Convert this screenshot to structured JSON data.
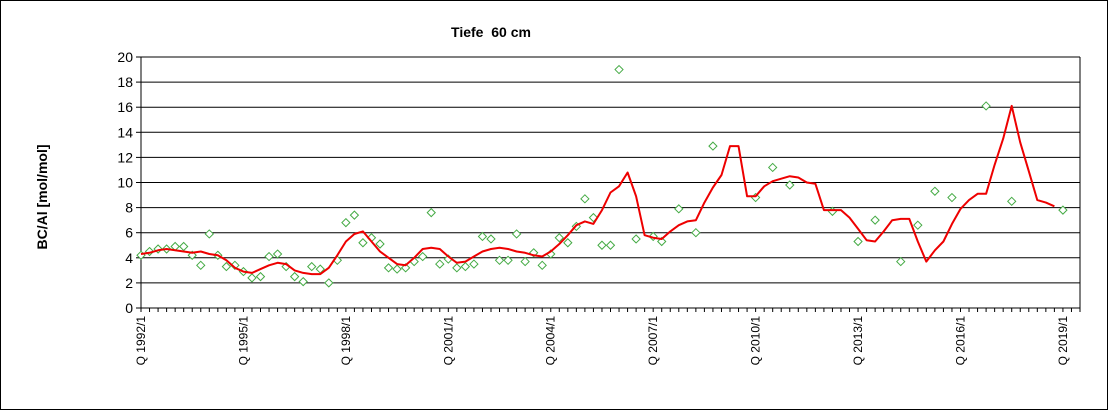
{
  "chart_data": {
    "type": "line",
    "title": "Tiefe  60 cm",
    "xlabel": "",
    "ylabel": "BC/Al [mol/mol]",
    "ylim": [
      0,
      20
    ],
    "yticks": [
      0,
      2,
      4,
      6,
      8,
      10,
      12,
      14,
      16,
      18,
      20
    ],
    "x_range": [
      1992.0,
      2019.5
    ],
    "xtick_labels": [
      {
        "label": "Q 1992/1",
        "x": 1992.0
      },
      {
        "label": "Q 1995/1",
        "x": 1995.0
      },
      {
        "label": "Q 1998/1",
        "x": 1998.0
      },
      {
        "label": "Q 2001/1",
        "x": 2001.0
      },
      {
        "label": "Q 2004/1",
        "x": 2004.0
      },
      {
        "label": "Q 2007/1",
        "x": 2007.0
      },
      {
        "label": "Q 2010/1",
        "x": 2010.0
      },
      {
        "label": "Q 2013/1",
        "x": 2013.0
      },
      {
        "label": "Q 2016/1",
        "x": 2016.0
      },
      {
        "label": "Q 2019/1",
        "x": 2019.0
      }
    ],
    "grid": "horizontal",
    "legend": "none",
    "series": [
      {
        "kind": "scatter",
        "marker": "diamond",
        "color": "#44aa44",
        "points": [
          [
            1992.0,
            4.2
          ],
          [
            1992.25,
            4.5
          ],
          [
            1992.5,
            4.7
          ],
          [
            1992.75,
            4.7
          ],
          [
            1993.0,
            4.9
          ],
          [
            1993.25,
            4.9
          ],
          [
            1993.5,
            4.2
          ],
          [
            1993.75,
            3.4
          ],
          [
            1994.0,
            5.9
          ],
          [
            1994.25,
            4.2
          ],
          [
            1994.5,
            3.3
          ],
          [
            1994.75,
            3.4
          ],
          [
            1995.0,
            2.9
          ],
          [
            1995.25,
            2.4
          ],
          [
            1995.5,
            2.5
          ],
          [
            1995.75,
            4.1
          ],
          [
            1996.0,
            4.3
          ],
          [
            1996.25,
            3.3
          ],
          [
            1996.5,
            2.5
          ],
          [
            1996.75,
            2.1
          ],
          [
            1997.0,
            3.3
          ],
          [
            1997.25,
            3.1
          ],
          [
            1997.5,
            2.0
          ],
          [
            1997.75,
            3.8
          ],
          [
            1998.0,
            6.8
          ],
          [
            1998.25,
            7.4
          ],
          [
            1998.5,
            5.2
          ],
          [
            1998.75,
            5.6
          ],
          [
            1999.0,
            5.1
          ],
          [
            1999.25,
            3.2
          ],
          [
            1999.5,
            3.1
          ],
          [
            1999.75,
            3.2
          ],
          [
            2000.0,
            3.7
          ],
          [
            2000.25,
            4.1
          ],
          [
            2000.5,
            7.6
          ],
          [
            2000.75,
            3.5
          ],
          [
            2001.0,
            3.9
          ],
          [
            2001.25,
            3.2
          ],
          [
            2001.5,
            3.3
          ],
          [
            2001.75,
            3.5
          ],
          [
            2002.0,
            5.7
          ],
          [
            2002.25,
            5.5
          ],
          [
            2002.5,
            3.8
          ],
          [
            2002.75,
            3.8
          ],
          [
            2003.0,
            5.9
          ],
          [
            2003.25,
            3.7
          ],
          [
            2003.5,
            4.4
          ],
          [
            2003.75,
            3.4
          ],
          [
            2004.0,
            4.3
          ],
          [
            2004.25,
            5.6
          ],
          [
            2004.5,
            5.2
          ],
          [
            2004.75,
            6.5
          ],
          [
            2005.0,
            8.7
          ],
          [
            2005.25,
            7.2
          ],
          [
            2005.5,
            5.0
          ],
          [
            2005.75,
            5.0
          ],
          [
            2006.0,
            19.0
          ],
          [
            2006.5,
            5.5
          ],
          [
            2007.0,
            5.7
          ],
          [
            2007.25,
            5.3
          ],
          [
            2007.75,
            7.9
          ],
          [
            2008.25,
            6.0
          ],
          [
            2008.75,
            12.9
          ],
          [
            2010.0,
            8.8
          ],
          [
            2010.5,
            11.2
          ],
          [
            2011.0,
            9.8
          ],
          [
            2012.25,
            7.7
          ],
          [
            2013.0,
            5.3
          ],
          [
            2013.5,
            7.0
          ],
          [
            2014.25,
            3.7
          ],
          [
            2014.75,
            6.6
          ],
          [
            2015.25,
            9.3
          ],
          [
            2015.75,
            8.8
          ],
          [
            2016.75,
            16.1
          ],
          [
            2017.5,
            8.5
          ],
          [
            2019.0,
            7.8
          ]
        ]
      },
      {
        "kind": "line",
        "color": "#ee0000",
        "points": [
          [
            1992.0,
            4.3
          ],
          [
            1992.25,
            4.4
          ],
          [
            1992.5,
            4.6
          ],
          [
            1992.75,
            4.7
          ],
          [
            1993.0,
            4.6
          ],
          [
            1993.25,
            4.5
          ],
          [
            1993.5,
            4.4
          ],
          [
            1993.75,
            4.5
          ],
          [
            1994.0,
            4.3
          ],
          [
            1994.25,
            4.2
          ],
          [
            1994.5,
            3.8
          ],
          [
            1994.75,
            3.2
          ],
          [
            1995.0,
            2.9
          ],
          [
            1995.25,
            2.8
          ],
          [
            1995.5,
            3.1
          ],
          [
            1995.75,
            3.4
          ],
          [
            1996.0,
            3.6
          ],
          [
            1996.25,
            3.5
          ],
          [
            1996.5,
            3.0
          ],
          [
            1996.75,
            2.8
          ],
          [
            1997.0,
            2.7
          ],
          [
            1997.25,
            2.7
          ],
          [
            1997.5,
            3.2
          ],
          [
            1997.75,
            4.2
          ],
          [
            1998.0,
            5.3
          ],
          [
            1998.25,
            5.9
          ],
          [
            1998.5,
            6.1
          ],
          [
            1998.75,
            5.3
          ],
          [
            1999.0,
            4.5
          ],
          [
            1999.25,
            4.0
          ],
          [
            1999.5,
            3.5
          ],
          [
            1999.75,
            3.4
          ],
          [
            2000.0,
            4.0
          ],
          [
            2000.25,
            4.7
          ],
          [
            2000.5,
            4.8
          ],
          [
            2000.75,
            4.7
          ],
          [
            2001.0,
            4.1
          ],
          [
            2001.25,
            3.6
          ],
          [
            2001.5,
            3.7
          ],
          [
            2001.75,
            4.1
          ],
          [
            2002.0,
            4.5
          ],
          [
            2002.25,
            4.7
          ],
          [
            2002.5,
            4.8
          ],
          [
            2002.75,
            4.7
          ],
          [
            2003.0,
            4.5
          ],
          [
            2003.25,
            4.4
          ],
          [
            2003.5,
            4.2
          ],
          [
            2003.75,
            4.1
          ],
          [
            2004.0,
            4.5
          ],
          [
            2004.25,
            5.1
          ],
          [
            2004.5,
            5.8
          ],
          [
            2004.75,
            6.6
          ],
          [
            2005.0,
            6.9
          ],
          [
            2005.25,
            6.7
          ],
          [
            2005.5,
            7.8
          ],
          [
            2005.75,
            9.2
          ],
          [
            2006.0,
            9.7
          ],
          [
            2006.25,
            10.8
          ],
          [
            2006.5,
            8.9
          ],
          [
            2006.75,
            5.8
          ],
          [
            2007.0,
            5.6
          ],
          [
            2007.25,
            5.5
          ],
          [
            2007.5,
            6.1
          ],
          [
            2007.75,
            6.6
          ],
          [
            2008.0,
            6.9
          ],
          [
            2008.25,
            7.0
          ],
          [
            2008.5,
            8.4
          ],
          [
            2008.75,
            9.6
          ],
          [
            2009.0,
            10.6
          ],
          [
            2009.25,
            12.9
          ],
          [
            2009.5,
            12.9
          ],
          [
            2009.75,
            8.9
          ],
          [
            2010.0,
            8.9
          ],
          [
            2010.25,
            9.7
          ],
          [
            2010.5,
            10.1
          ],
          [
            2010.75,
            10.3
          ],
          [
            2011.0,
            10.5
          ],
          [
            2011.25,
            10.4
          ],
          [
            2011.5,
            10.0
          ],
          [
            2011.75,
            9.9
          ],
          [
            2012.0,
            7.8
          ],
          [
            2012.5,
            7.8
          ],
          [
            2012.75,
            7.2
          ],
          [
            2013.0,
            6.3
          ],
          [
            2013.25,
            5.4
          ],
          [
            2013.5,
            5.3
          ],
          [
            2013.75,
            6.1
          ],
          [
            2014.0,
            7.0
          ],
          [
            2014.25,
            7.1
          ],
          [
            2014.5,
            7.1
          ],
          [
            2014.75,
            5.3
          ],
          [
            2015.0,
            3.7
          ],
          [
            2015.25,
            4.6
          ],
          [
            2015.5,
            5.3
          ],
          [
            2015.75,
            6.7
          ],
          [
            2016.0,
            7.9
          ],
          [
            2016.25,
            8.6
          ],
          [
            2016.5,
            9.1
          ],
          [
            2016.75,
            9.1
          ],
          [
            2017.0,
            11.4
          ],
          [
            2017.25,
            13.5
          ],
          [
            2017.5,
            16.1
          ],
          [
            2017.75,
            13.2
          ],
          [
            2018.0,
            10.9
          ],
          [
            2018.25,
            8.6
          ],
          [
            2018.5,
            8.4
          ],
          [
            2018.75,
            8.1
          ]
        ]
      }
    ]
  }
}
